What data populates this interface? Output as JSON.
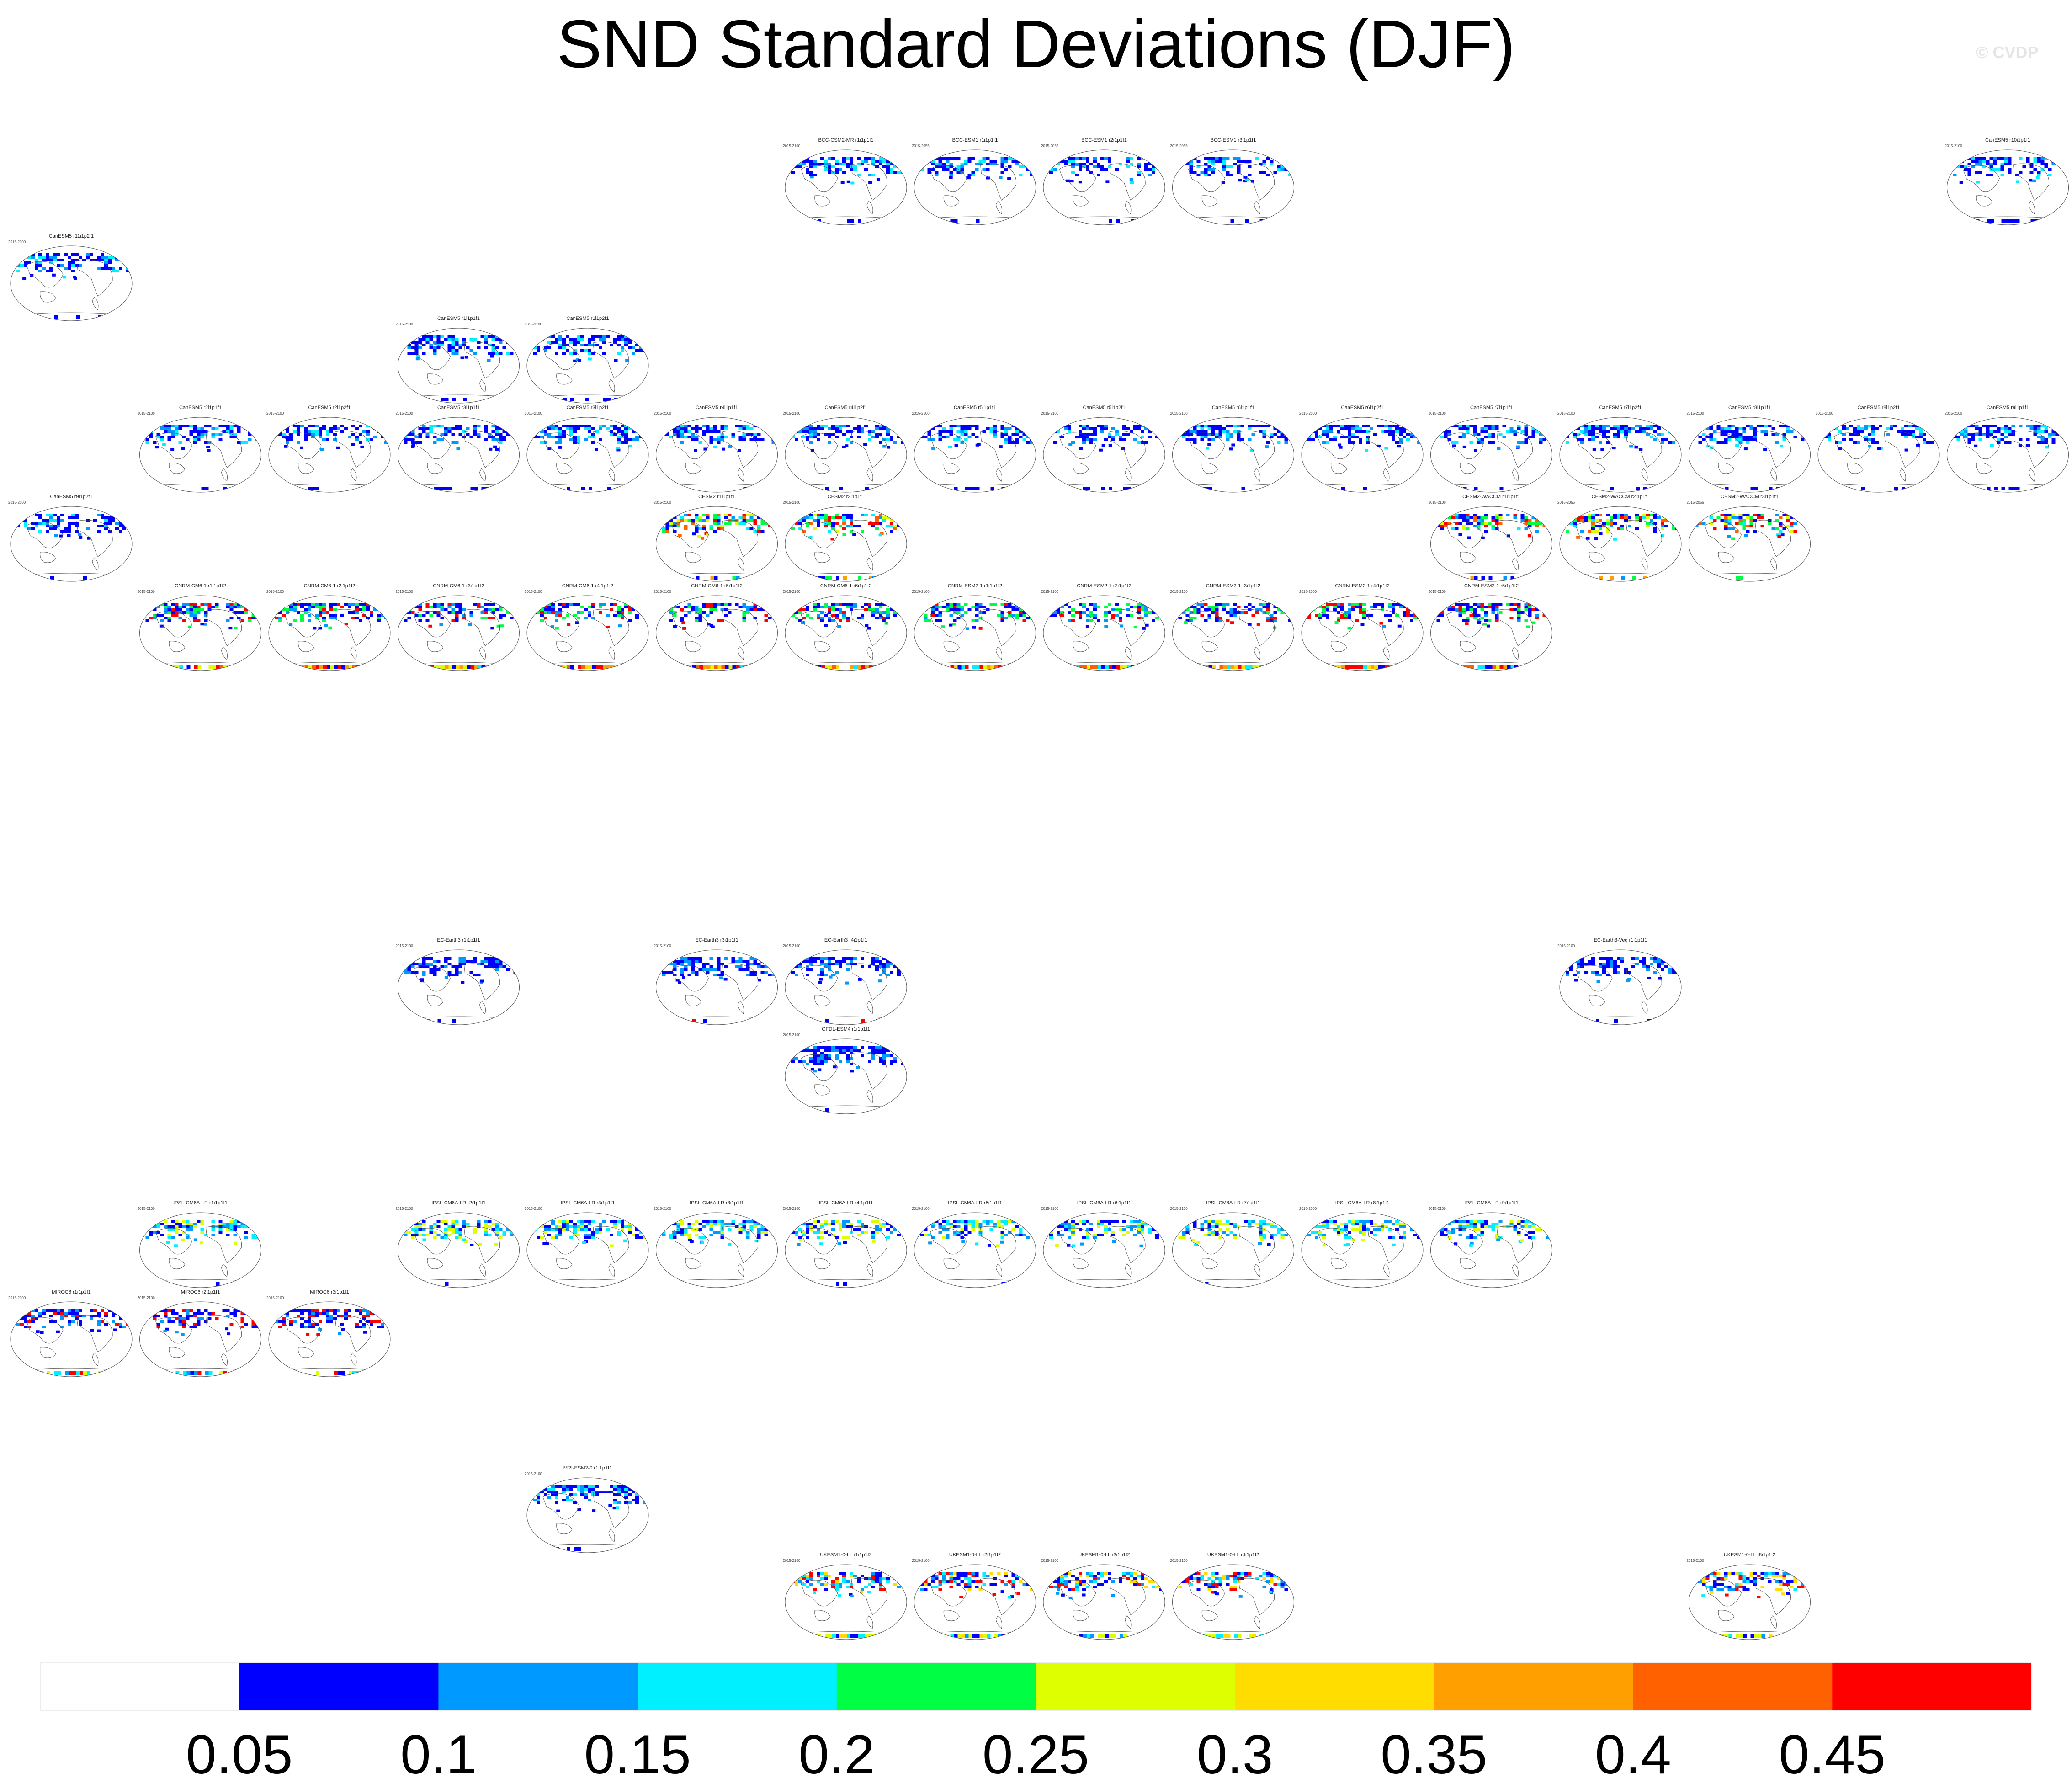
{
  "title": "SND Standard Deviations (DJF)",
  "credit": "© CVDP",
  "chart_data": {
    "type": "heatmap",
    "title": "SND Standard Deviations (DJF)",
    "description_of_panels": "global map panels, one per model ensemble member",
    "colorbar": {
      "levels": [
        0.05,
        0.1,
        0.15,
        0.2,
        0.25,
        0.3,
        0.35,
        0.4,
        0.45
      ],
      "tick_labels": [
        "0.05",
        "0.1",
        "0.15",
        "0.2",
        "0.25",
        "0.3",
        "0.35",
        "0.4",
        "0.45"
      ],
      "colors": [
        "#ffffff",
        "#0000ff",
        "#0099ff",
        "#00f0ff",
        "#00ff44",
        "#ddff00",
        "#ffdd00",
        "#ffa000",
        "#ff6000",
        "#ff0000"
      ]
    },
    "panels": [
      {
        "row": 0,
        "col": 6,
        "label": "BCC-CSM2-MR r1i1p1f1",
        "period": "2015-2100",
        "scheme": "blue"
      },
      {
        "row": 0,
        "col": 7,
        "label": "BCC-ESM1 r1i1p1f1",
        "period": "2015-2055",
        "scheme": "blue"
      },
      {
        "row": 0,
        "col": 8,
        "label": "BCC-ESM1 r2i1p1f1",
        "period": "2015-2055",
        "scheme": "blue"
      },
      {
        "row": 0,
        "col": 9,
        "label": "BCC-ESM1 r3i1p1f1",
        "period": "2015-2055",
        "scheme": "blue"
      },
      {
        "row": 0,
        "col": 15,
        "label": "CanESM5 r10i1p1f1",
        "period": "2015-2100",
        "scheme": "blue"
      },
      {
        "row": 1,
        "col": 0,
        "label": "CanESM5 r11i1p2f1",
        "period": "2015-2100",
        "scheme": "blue"
      },
      {
        "row": 2,
        "col": 3,
        "label": "CanESM5 r1i1p1f1",
        "period": "2015-2100",
        "scheme": "blue"
      },
      {
        "row": 2,
        "col": 4,
        "label": "CanESM5 r1i1p2f1",
        "period": "2015-2100",
        "scheme": "blue"
      },
      {
        "row": 3,
        "col": 1,
        "label": "CanESM5 r2i1p1f1",
        "period": "2015-2100",
        "scheme": "blue"
      },
      {
        "row": 3,
        "col": 2,
        "label": "CanESM5 r2i1p2f1",
        "period": "2015-2100",
        "scheme": "blue"
      },
      {
        "row": 3,
        "col": 3,
        "label": "CanESM5 r3i1p1f1",
        "period": "2015-2100",
        "scheme": "blue"
      },
      {
        "row": 3,
        "col": 4,
        "label": "CanESM5 r3i1p2f1",
        "period": "2015-2100",
        "scheme": "blue"
      },
      {
        "row": 3,
        "col": 5,
        "label": "CanESM5 r4i1p1f1",
        "period": "2015-2100",
        "scheme": "blue"
      },
      {
        "row": 3,
        "col": 6,
        "label": "CanESM5 r4i1p2f1",
        "period": "2015-2100",
        "scheme": "blue"
      },
      {
        "row": 3,
        "col": 7,
        "label": "CanESM5 r5i1p1f1",
        "period": "2015-2100",
        "scheme": "blue"
      },
      {
        "row": 3,
        "col": 8,
        "label": "CanESM5 r5i1p2f1",
        "period": "2015-2100",
        "scheme": "blue"
      },
      {
        "row": 3,
        "col": 9,
        "label": "CanESM5 r6i1p1f1",
        "period": "2015-2100",
        "scheme": "blue"
      },
      {
        "row": 3,
        "col": 10,
        "label": "CanESM5 r6i1p2f1",
        "period": "2015-2100",
        "scheme": "blue"
      },
      {
        "row": 3,
        "col": 11,
        "label": "CanESM5 r7i1p1f1",
        "period": "2015-2100",
        "scheme": "blue"
      },
      {
        "row": 3,
        "col": 12,
        "label": "CanESM5 r7i1p2f1",
        "period": "2015-2100",
        "scheme": "blue"
      },
      {
        "row": 3,
        "col": 13,
        "label": "CanESM5 r8i1p1f1",
        "period": "2015-2100",
        "scheme": "blue"
      },
      {
        "row": 3,
        "col": 14,
        "label": "CanESM5 r8i1p2f1",
        "period": "2015-2100",
        "scheme": "blue"
      },
      {
        "row": 3,
        "col": 15,
        "label": "CanESM5 r9i1p1f1",
        "period": "2015-2100",
        "scheme": "blue"
      },
      {
        "row": 4,
        "col": 0,
        "label": "CanESM5 r9i1p2f1",
        "period": "2015-2100",
        "scheme": "blue"
      },
      {
        "row": 4,
        "col": 5,
        "label": "CESM2 r1i1p1f1",
        "period": "2015-2100",
        "scheme": "mixed"
      },
      {
        "row": 4,
        "col": 6,
        "label": "CESM2 r2i1p1f1",
        "period": "2015-2100",
        "scheme": "mixed"
      },
      {
        "row": 4,
        "col": 11,
        "label": "CESM2-WACCM r1i1p1f1",
        "period": "2015-2100",
        "scheme": "mixed"
      },
      {
        "row": 4,
        "col": 12,
        "label": "CESM2-WACCM r2i1p1f1",
        "period": "2015-2055",
        "scheme": "mixed"
      },
      {
        "row": 4,
        "col": 13,
        "label": "CESM2-WACCM r3i1p1f1",
        "period": "2015-2055",
        "scheme": "mixed"
      },
      {
        "row": 5,
        "col": 1,
        "label": "CNRM-CM6-1 r1i1p1f2",
        "period": "2015-2100",
        "scheme": "hot"
      },
      {
        "row": 5,
        "col": 2,
        "label": "CNRM-CM6-1 r2i1p1f2",
        "period": "2015-2100",
        "scheme": "hot"
      },
      {
        "row": 5,
        "col": 3,
        "label": "CNRM-CM6-1 r3i1p1f2",
        "period": "2015-2100",
        "scheme": "hot"
      },
      {
        "row": 5,
        "col": 4,
        "label": "CNRM-CM6-1 r4i1p1f2",
        "period": "2015-2100",
        "scheme": "hot"
      },
      {
        "row": 5,
        "col": 5,
        "label": "CNRM-CM6-1 r5i1p1f2",
        "period": "2015-2100",
        "scheme": "hot"
      },
      {
        "row": 5,
        "col": 6,
        "label": "CNRM-CM6-1 r6i1p1f2",
        "period": "2015-2100",
        "scheme": "hot"
      },
      {
        "row": 5,
        "col": 7,
        "label": "CNRM-ESM2-1 r1i1p1f2",
        "period": "2015-2100",
        "scheme": "hot"
      },
      {
        "row": 5,
        "col": 8,
        "label": "CNRM-ESM2-1 r2i1p1f2",
        "period": "2015-2100",
        "scheme": "hot"
      },
      {
        "row": 5,
        "col": 9,
        "label": "CNRM-ESM2-1 r3i1p1f2",
        "period": "2015-2100",
        "scheme": "hot"
      },
      {
        "row": 5,
        "col": 10,
        "label": "CNRM-ESM2-1 r4i1p1f2",
        "period": "2015-2100",
        "scheme": "hot"
      },
      {
        "row": 5,
        "col": 11,
        "label": "CNRM-ESM2-1 r5i1p1f2",
        "period": "2015-2100",
        "scheme": "hot"
      },
      {
        "row": 6,
        "col": 3,
        "label": "EC-Earth3 r1i1p1f1",
        "period": "2015-2100",
        "scheme": "sparse"
      },
      {
        "row": 6,
        "col": 5,
        "label": "EC-Earth3 r3i1p1f1",
        "period": "2015-2100",
        "scheme": "sparse"
      },
      {
        "row": 6,
        "col": 6,
        "label": "EC-Earth3 r4i1p1f1",
        "period": "2015-2100",
        "scheme": "sparse"
      },
      {
        "row": 6,
        "col": 12,
        "label": "EC-Earth3-Veg r1i1p1f1",
        "period": "2015-2100",
        "scheme": "sparse"
      },
      {
        "row": 7,
        "col": 6,
        "label": "GFDL-ESM4 r1i1p1f1",
        "period": "2015-2100",
        "scheme": "sparse"
      },
      {
        "row": 8,
        "col": 1,
        "label": "IPSL-CM6A-LR r1i1p1f1",
        "period": "2015-2100",
        "scheme": "light"
      },
      {
        "row": 8,
        "col": 3,
        "label": "IPSL-CM6A-LR r2i1p1f1",
        "period": "2015-2100",
        "scheme": "light"
      },
      {
        "row": 8,
        "col": 4,
        "label": "IPSL-CM6A-LR r3i1p1f1",
        "period": "2015-2100",
        "scheme": "light"
      },
      {
        "row": 8,
        "col": 5,
        "label": "IPSL-CM6A-LR r3i1p1f1",
        "period": "2015-2100",
        "scheme": "light"
      },
      {
        "row": 8,
        "col": 6,
        "label": "IPSL-CM6A-LR r4i1p1f1",
        "period": "2015-2100",
        "scheme": "light"
      },
      {
        "row": 8,
        "col": 7,
        "label": "IPSL-CM6A-LR r5i1p1f1",
        "period": "2015-2100",
        "scheme": "light"
      },
      {
        "row": 8,
        "col": 8,
        "label": "IPSL-CM6A-LR r6i1p1f1",
        "period": "2015-2100",
        "scheme": "light"
      },
      {
        "row": 8,
        "col": 9,
        "label": "IPSL-CM6A-LR r7i1p1f1",
        "period": "2015-2100",
        "scheme": "light"
      },
      {
        "row": 8,
        "col": 10,
        "label": "IPSL-CM6A-LR r8i1p1f1",
        "period": "2015-2100",
        "scheme": "light"
      },
      {
        "row": 8,
        "col": 11,
        "label": "IPSL-CM6A-LR r9i1p1f1",
        "period": "2015-2100",
        "scheme": "light"
      },
      {
        "row": 9,
        "col": 0,
        "label": "MIROC6 r1i1p1f1",
        "period": "2015-2100",
        "scheme": "miroc"
      },
      {
        "row": 9,
        "col": 1,
        "label": "MIROC6 r2i1p1f1",
        "period": "2015-2100",
        "scheme": "miroc"
      },
      {
        "row": 9,
        "col": 2,
        "label": "MIROC6 r3i1p1f1",
        "period": "2015-2100",
        "scheme": "miroc"
      },
      {
        "row": 10,
        "col": 4,
        "label": "MRI-ESM2-0 r1i1p1f1",
        "period": "2015-2100",
        "scheme": "blue"
      },
      {
        "row": 11,
        "col": 6,
        "label": "UKESM1-0-LL r1i1p1f2",
        "period": "2015-2100",
        "scheme": "uk"
      },
      {
        "row": 11,
        "col": 7,
        "label": "UKESM1-0-LL r2i1p1f2",
        "period": "2015-2100",
        "scheme": "uk"
      },
      {
        "row": 11,
        "col": 8,
        "label": "UKESM1-0-LL r3i1p1f2",
        "period": "2015-2100",
        "scheme": "uk"
      },
      {
        "row": 11,
        "col": 9,
        "label": "UKESM1-0-LL r4i1p1f2",
        "period": "2015-2100",
        "scheme": "uk"
      },
      {
        "row": 11,
        "col": 13,
        "label": "UKESM1-0-LL r8i1p1f2",
        "period": "2015-2100",
        "scheme": "uk"
      }
    ]
  }
}
